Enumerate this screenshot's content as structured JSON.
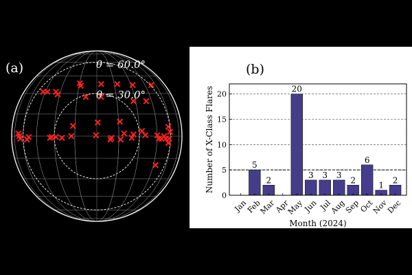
{
  "chart_data": [
    {
      "type": "scatter",
      "panel_label": "(a)",
      "projection": "orthographic solar disk",
      "circle_labels": [
        {
          "theta": 60.0,
          "text": "θ = 60.0°"
        },
        {
          "theta": 30.0,
          "text": "θ = 30.0°"
        }
      ],
      "marker": "x",
      "marker_color": "#ff2020",
      "background": "#000000",
      "grid_color": "#8c8c8c",
      "points": [
        {
          "x": -0.63,
          "y": 0.52
        },
        {
          "x": -0.58,
          "y": 0.52
        },
        {
          "x": -0.48,
          "y": 0.52
        },
        {
          "x": -0.46,
          "y": 0.49
        },
        {
          "x": -0.2,
          "y": 0.62
        },
        {
          "x": -0.19,
          "y": 0.59
        },
        {
          "x": 0.05,
          "y": 0.61
        },
        {
          "x": 0.24,
          "y": 0.61
        },
        {
          "x": 0.42,
          "y": 0.6
        },
        {
          "x": 0.64,
          "y": 0.6
        },
        {
          "x": -0.13,
          "y": 0.46
        },
        {
          "x": 0.05,
          "y": 0.46
        },
        {
          "x": 0.43,
          "y": 0.41
        },
        {
          "x": 0.58,
          "y": 0.41
        },
        {
          "x": -0.28,
          "y": 0.12
        },
        {
          "x": -0.3,
          "y": 0.0
        },
        {
          "x": 0.01,
          "y": 0.16
        },
        {
          "x": 0.27,
          "y": 0.17
        },
        {
          "x": -0.01,
          "y": 0.01
        },
        {
          "x": 0.17,
          "y": -0.02
        },
        {
          "x": 0.32,
          "y": 0.03
        },
        {
          "x": 0.43,
          "y": 0.02
        },
        {
          "x": 0.53,
          "y": 0.06
        },
        {
          "x": 0.57,
          "y": 0.01
        },
        {
          "x": -0.48,
          "y": -0.01
        },
        {
          "x": -0.53,
          "y": -0.01
        },
        {
          "x": -0.55,
          "y": -0.02
        },
        {
          "x": -0.41,
          "y": -0.02
        },
        {
          "x": 0.16,
          "y": -0.04
        },
        {
          "x": 0.28,
          "y": -0.04
        },
        {
          "x": 0.41,
          "y": -0.02
        },
        {
          "x": -0.92,
          "y": 0.03
        },
        {
          "x": -0.91,
          "y": 0.0
        },
        {
          "x": -0.9,
          "y": -0.03
        },
        {
          "x": -0.8,
          "y": -0.01
        },
        {
          "x": -0.82,
          "y": -0.04
        },
        {
          "x": 0.71,
          "y": 0.01
        },
        {
          "x": 0.73,
          "y": -0.03
        },
        {
          "x": 0.76,
          "y": -0.03
        },
        {
          "x": 0.79,
          "y": 0.0
        },
        {
          "x": 0.81,
          "y": -0.03
        },
        {
          "x": 0.84,
          "y": 0.11
        },
        {
          "x": 0.86,
          "y": 0.05
        },
        {
          "x": 0.85,
          "y": -0.03
        },
        {
          "x": 0.84,
          "y": -0.08
        },
        {
          "x": 0.69,
          "y": -0.34
        }
      ]
    },
    {
      "type": "bar",
      "panel_label": "(b)",
      "categories": [
        "Jan",
        "Feb",
        "Mar",
        "Apr",
        "May",
        "Jun",
        "Jul",
        "Aug",
        "Sep",
        "Oct",
        "Nov",
        "Dec"
      ],
      "values": [
        0,
        5,
        2,
        0,
        20,
        3,
        3,
        3,
        2,
        6,
        1,
        2
      ],
      "data_labels": [
        "",
        "5",
        "2",
        "",
        "20",
        "3",
        "3",
        "3",
        "2",
        "6",
        "1",
        "2"
      ],
      "xlabel": "Month (2024)",
      "ylabel": "Number of X-Class Flares",
      "ylim": [
        0,
        22
      ],
      "yticks": [
        0,
        5,
        10,
        15,
        20
      ],
      "grid": "dashed horizontal",
      "reference_line": 5,
      "bar_color": "#453d8c",
      "bar_edge": "#111111"
    }
  ]
}
